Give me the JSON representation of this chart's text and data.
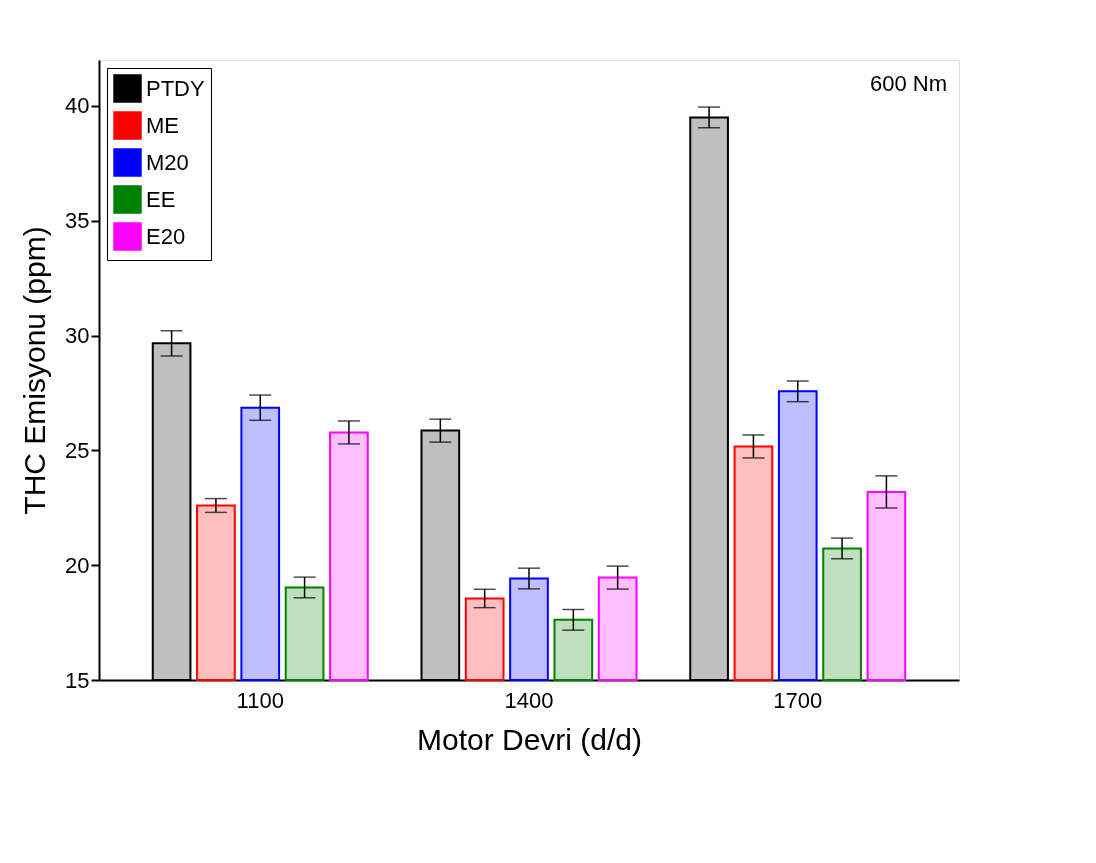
{
  "chart_data": {
    "type": "bar",
    "xlabel": "Motor Devri (d/d)",
    "ylabel": "THC Emisyonu (ppm)",
    "categories": [
      "1100",
      "1400",
      "1700"
    ],
    "series": [
      {
        "name": "PTDY",
        "color": "#000000",
        "values": [
          29.66,
          25.86,
          39.5
        ],
        "errors": [
          0.55,
          0.5,
          0.45
        ]
      },
      {
        "name": "ME",
        "color": "#ff0000",
        "values": [
          22.6,
          18.55,
          25.17
        ],
        "errors": [
          0.3,
          0.4,
          0.5
        ]
      },
      {
        "name": "M20",
        "color": "#0000ff",
        "values": [
          26.86,
          19.42,
          27.57
        ],
        "errors": [
          0.55,
          0.45,
          0.45
        ]
      },
      {
        "name": "EE",
        "color": "#008000",
        "values": [
          19.03,
          17.62,
          20.73
        ],
        "errors": [
          0.45,
          0.45,
          0.45
        ]
      },
      {
        "name": "E20",
        "color": "#ff00ff",
        "values": [
          25.78,
          19.46,
          23.19
        ],
        "errors": [
          0.5,
          0.5,
          0.7
        ]
      }
    ],
    "ylim": [
      15,
      42
    ],
    "yticks": [
      15,
      20,
      25,
      30,
      35,
      40
    ],
    "annotations": [
      "600 Nm"
    ],
    "legend": "top left",
    "grid": false
  }
}
